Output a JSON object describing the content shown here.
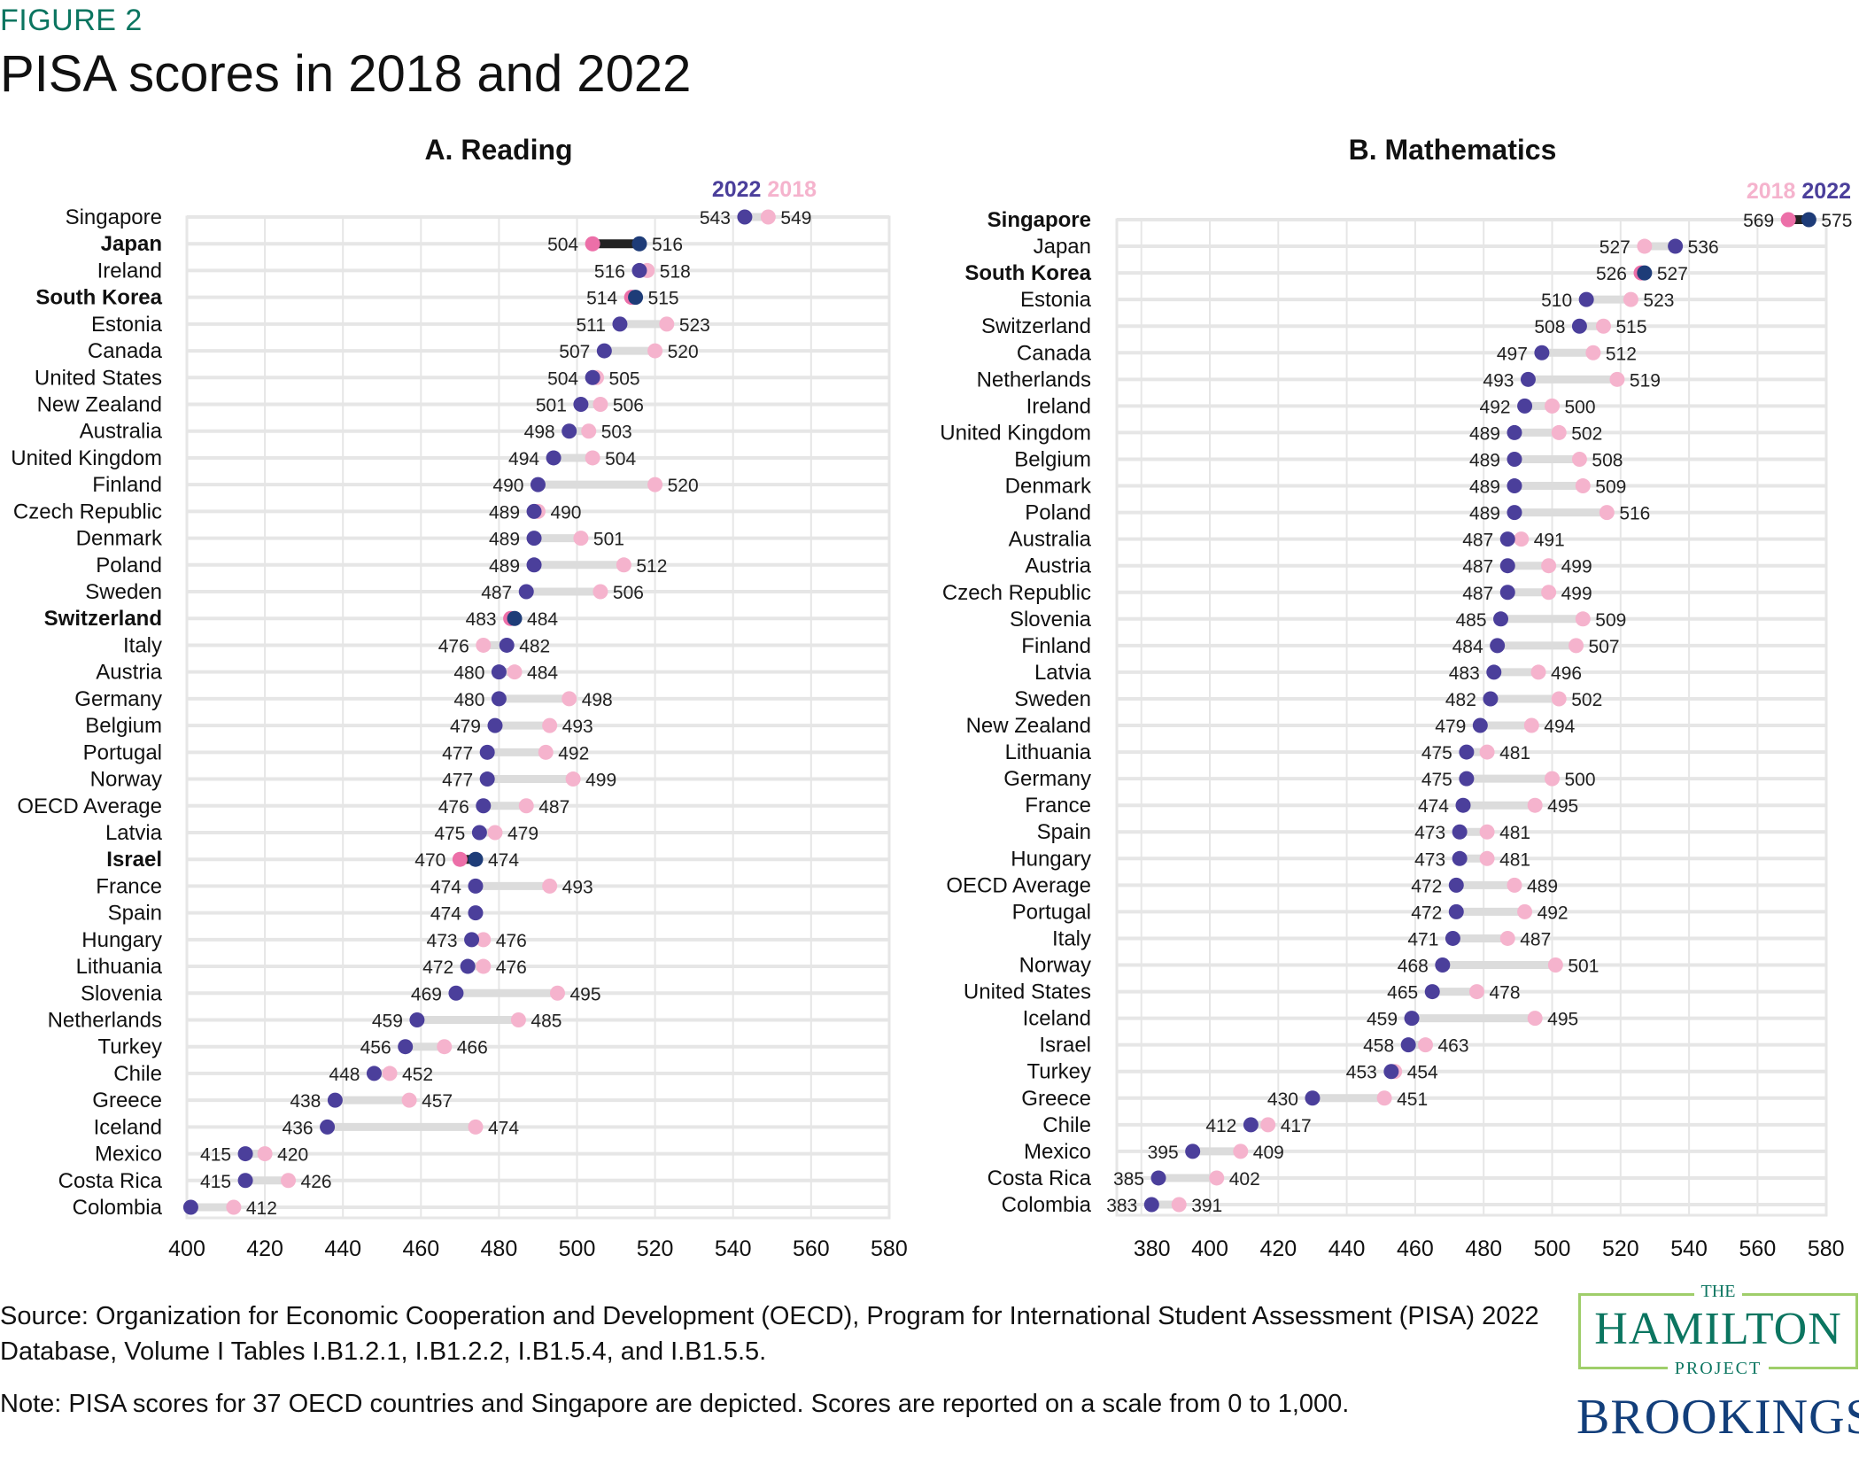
{
  "figure_label": "FIGURE 2",
  "title": "PISA scores in 2018 and 2022",
  "source": "Source: Organization for Economic Cooperation and Development (OECD), Program for International Student Assessment (PISA) 2022 Database, Volume I Tables I.B1.2.1, I.B1.2.2, I.B1.5.4, and I.B1.5.5.",
  "note": "Note: PISA scores for 37 OECD countries and Singapore are depicted. Scores are reported on a scale from 0 to 1,000.",
  "logos": {
    "hamilton_the": "THE",
    "hamilton_main": "HAMILTON",
    "hamilton_project": "PROJECT",
    "brookings": "BROOKINGS"
  },
  "colors": {
    "y2022": "#4b3f9b",
    "y2018": "#f5b3cd",
    "hi2022": "#1e3c78",
    "hi2018": "#ec6fa8",
    "connector": "#dcdcdc",
    "hi_connector": "#222222",
    "grid": "#e6e6e6"
  },
  "chart_data": [
    {
      "type": "dumbbell",
      "title": "A. Reading",
      "legend": [
        "2022",
        "2018"
      ],
      "xlim": [
        400,
        580
      ],
      "xticks": [
        400,
        420,
        440,
        460,
        480,
        500,
        520,
        540,
        560,
        580
      ],
      "grid": true,
      "rows": [
        {
          "country": "Singapore",
          "y2022": 543,
          "y2018": 549,
          "bold": false
        },
        {
          "country": "Japan",
          "y2022": 516,
          "y2018": 504,
          "bold": true
        },
        {
          "country": "Ireland",
          "y2022": 516,
          "y2018": 518,
          "bold": false
        },
        {
          "country": "South Korea",
          "y2022": 515,
          "y2018": 514,
          "bold": true
        },
        {
          "country": "Estonia",
          "y2022": 511,
          "y2018": 523,
          "bold": false
        },
        {
          "country": "Canada",
          "y2022": 507,
          "y2018": 520,
          "bold": false
        },
        {
          "country": "United States",
          "y2022": 504,
          "y2018": 505,
          "bold": false
        },
        {
          "country": "New Zealand",
          "y2022": 501,
          "y2018": 506,
          "bold": false
        },
        {
          "country": "Australia",
          "y2022": 498,
          "y2018": 503,
          "bold": false
        },
        {
          "country": "United Kingdom",
          "y2022": 494,
          "y2018": 504,
          "bold": false
        },
        {
          "country": "Finland",
          "y2022": 490,
          "y2018": 520,
          "bold": false
        },
        {
          "country": "Czech Republic",
          "y2022": 489,
          "y2018": 490,
          "bold": false
        },
        {
          "country": "Denmark",
          "y2022": 489,
          "y2018": 501,
          "bold": false
        },
        {
          "country": "Poland",
          "y2022": 489,
          "y2018": 512,
          "bold": false
        },
        {
          "country": "Sweden",
          "y2022": 487,
          "y2018": 506,
          "bold": false
        },
        {
          "country": "Switzerland",
          "y2022": 484,
          "y2018": 483,
          "bold": true
        },
        {
          "country": "Italy",
          "y2022": 482,
          "y2018": 476,
          "bold": false
        },
        {
          "country": "Austria",
          "y2022": 480,
          "y2018": 484,
          "bold": false
        },
        {
          "country": "Germany",
          "y2022": 480,
          "y2018": 498,
          "bold": false
        },
        {
          "country": "Belgium",
          "y2022": 479,
          "y2018": 493,
          "bold": false
        },
        {
          "country": "Portugal",
          "y2022": 477,
          "y2018": 492,
          "bold": false
        },
        {
          "country": "Norway",
          "y2022": 477,
          "y2018": 499,
          "bold": false
        },
        {
          "country": "OECD Average",
          "y2022": 476,
          "y2018": 487,
          "bold": false
        },
        {
          "country": "Latvia",
          "y2022": 475,
          "y2018": 479,
          "bold": false
        },
        {
          "country": "Israel",
          "y2022": 474,
          "y2018": 470,
          "bold": true
        },
        {
          "country": "France",
          "y2022": 474,
          "y2018": 493,
          "bold": false
        },
        {
          "country": "Spain",
          "y2022": 474,
          "y2018": null,
          "bold": false
        },
        {
          "country": "Hungary",
          "y2022": 473,
          "y2018": 476,
          "bold": false
        },
        {
          "country": "Lithuania",
          "y2022": 472,
          "y2018": 476,
          "bold": false
        },
        {
          "country": "Slovenia",
          "y2022": 469,
          "y2018": 495,
          "bold": false
        },
        {
          "country": "Netherlands",
          "y2022": 459,
          "y2018": 485,
          "bold": false
        },
        {
          "country": "Turkey",
          "y2022": 456,
          "y2018": 466,
          "bold": false
        },
        {
          "country": "Chile",
          "y2022": 448,
          "y2018": 452,
          "bold": false
        },
        {
          "country": "Greece",
          "y2022": 438,
          "y2018": 457,
          "bold": false
        },
        {
          "country": "Iceland",
          "y2022": 436,
          "y2018": 474,
          "bold": false
        },
        {
          "country": "Mexico",
          "y2022": 415,
          "y2018": 420,
          "bold": false
        },
        {
          "country": "Costa Rica",
          "y2022": 415,
          "y2018": 426,
          "bold": false
        },
        {
          "country": "Colombia",
          "y2022": 401,
          "y2018": 412,
          "bold": false,
          "hide2022label": true
        }
      ]
    },
    {
      "type": "dumbbell",
      "title": "B. Mathematics",
      "legend": [
        "2018",
        "2022"
      ],
      "xlim": [
        380,
        580
      ],
      "xticks": [
        380,
        400,
        420,
        440,
        460,
        480,
        500,
        520,
        540,
        560,
        580
      ],
      "grid": true,
      "rows": [
        {
          "country": "Singapore",
          "y2022": 575,
          "y2018": 569,
          "bold": true
        },
        {
          "country": "Japan",
          "y2022": 536,
          "y2018": 527,
          "bold": false
        },
        {
          "country": "South Korea",
          "y2022": 527,
          "y2018": 526,
          "bold": true
        },
        {
          "country": "Estonia",
          "y2022": 510,
          "y2018": 523,
          "bold": false
        },
        {
          "country": "Switzerland",
          "y2022": 508,
          "y2018": 515,
          "bold": false
        },
        {
          "country": "Canada",
          "y2022": 497,
          "y2018": 512,
          "bold": false
        },
        {
          "country": "Netherlands",
          "y2022": 493,
          "y2018": 519,
          "bold": false
        },
        {
          "country": "Ireland",
          "y2022": 492,
          "y2018": 500,
          "bold": false
        },
        {
          "country": "United Kingdom",
          "y2022": 489,
          "y2018": 502,
          "bold": false
        },
        {
          "country": "Belgium",
          "y2022": 489,
          "y2018": 508,
          "bold": false
        },
        {
          "country": "Denmark",
          "y2022": 489,
          "y2018": 509,
          "bold": false
        },
        {
          "country": "Poland",
          "y2022": 489,
          "y2018": 516,
          "bold": false
        },
        {
          "country": "Australia",
          "y2022": 487,
          "y2018": 491,
          "bold": false
        },
        {
          "country": "Austria",
          "y2022": 487,
          "y2018": 499,
          "bold": false
        },
        {
          "country": "Czech Republic",
          "y2022": 487,
          "y2018": 499,
          "bold": false
        },
        {
          "country": "Slovenia",
          "y2022": 485,
          "y2018": 509,
          "bold": false
        },
        {
          "country": "Finland",
          "y2022": 484,
          "y2018": 507,
          "bold": false
        },
        {
          "country": "Latvia",
          "y2022": 483,
          "y2018": 496,
          "bold": false
        },
        {
          "country": "Sweden",
          "y2022": 482,
          "y2018": 502,
          "bold": false
        },
        {
          "country": "New Zealand",
          "y2022": 479,
          "y2018": 494,
          "bold": false
        },
        {
          "country": "Lithuania",
          "y2022": 475,
          "y2018": 481,
          "bold": false
        },
        {
          "country": "Germany",
          "y2022": 475,
          "y2018": 500,
          "bold": false
        },
        {
          "country": "France",
          "y2022": 474,
          "y2018": 495,
          "bold": false
        },
        {
          "country": "Spain",
          "y2022": 473,
          "y2018": 481,
          "bold": false
        },
        {
          "country": "Hungary",
          "y2022": 473,
          "y2018": 481,
          "bold": false
        },
        {
          "country": "OECD Average",
          "y2022": 472,
          "y2018": 489,
          "bold": false
        },
        {
          "country": "Portugal",
          "y2022": 472,
          "y2018": 492,
          "bold": false
        },
        {
          "country": "Italy",
          "y2022": 471,
          "y2018": 487,
          "bold": false
        },
        {
          "country": "Norway",
          "y2022": 468,
          "y2018": 501,
          "bold": false
        },
        {
          "country": "United States",
          "y2022": 465,
          "y2018": 478,
          "bold": false
        },
        {
          "country": "Iceland",
          "y2022": 459,
          "y2018": 495,
          "bold": false
        },
        {
          "country": "Israel",
          "y2022": 458,
          "y2018": 463,
          "bold": false
        },
        {
          "country": "Turkey",
          "y2022": 453,
          "y2018": 454,
          "bold": false
        },
        {
          "country": "Greece",
          "y2022": 430,
          "y2018": 451,
          "bold": false
        },
        {
          "country": "Chile",
          "y2022": 412,
          "y2018": 417,
          "bold": false
        },
        {
          "country": "Mexico",
          "y2022": 395,
          "y2018": 409,
          "bold": false
        },
        {
          "country": "Costa Rica",
          "y2022": 385,
          "y2018": 402,
          "bold": false
        },
        {
          "country": "Colombia",
          "y2022": 383,
          "y2018": 391,
          "bold": false
        }
      ]
    }
  ]
}
